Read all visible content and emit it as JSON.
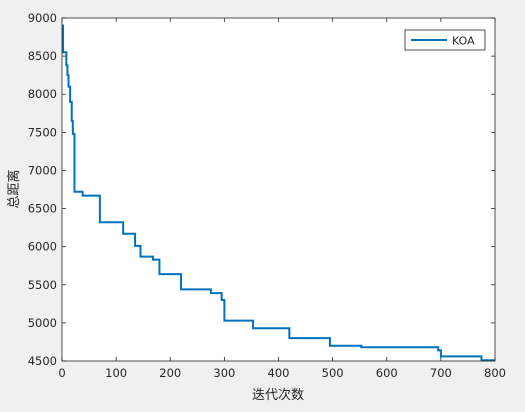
{
  "chart_data": {
    "type": "line",
    "title": "",
    "xlabel": "迭代次数",
    "ylabel": "总距离",
    "xlim": [
      0,
      800
    ],
    "ylim": [
      4500,
      9000
    ],
    "xticks": [
      0,
      100,
      200,
      300,
      400,
      500,
      600,
      700,
      800
    ],
    "yticks": [
      4500,
      5000,
      5500,
      6000,
      6500,
      7000,
      7500,
      8000,
      8500,
      9000
    ],
    "grid": false,
    "legend_position": "top-right",
    "series": [
      {
        "name": "KOA",
        "color": "#0072bd",
        "step": true,
        "x": [
          0,
          2,
          8,
          10,
          12,
          15,
          18,
          20,
          23,
          27,
          38,
          70,
          113,
          135,
          145,
          168,
          180,
          220,
          275,
          295,
          300,
          305,
          353,
          420,
          495,
          553,
          695,
          700,
          775,
          800
        ],
        "y": [
          8900,
          8550,
          8380,
          8250,
          8100,
          7900,
          7650,
          7480,
          6720,
          6720,
          6670,
          6320,
          6170,
          6010,
          5870,
          5830,
          5640,
          5440,
          5390,
          5300,
          5030,
          5030,
          4930,
          4800,
          4700,
          4680,
          4640,
          4560,
          4510,
          4510
        ]
      }
    ]
  }
}
